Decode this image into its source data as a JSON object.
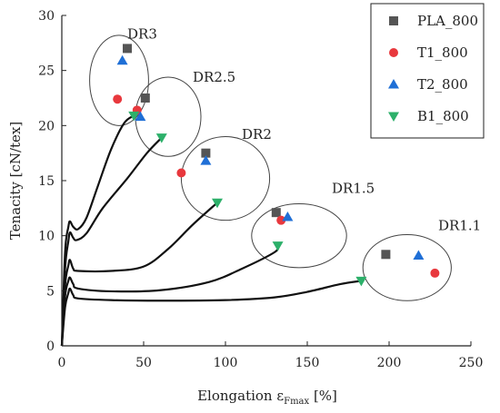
{
  "chart_data": {
    "type": "scatter",
    "title": "",
    "xlabel_main": "Elongation ε",
    "xlabel_sub": "Fmax",
    "xlabel_unit": " [%]",
    "ylabel": "Tenacity [cN/tex]",
    "xlim": [
      0,
      250
    ],
    "ylim": [
      0,
      30
    ],
    "xticks": [
      0,
      50,
      100,
      150,
      200,
      250
    ],
    "yticks": [
      0,
      5,
      10,
      15,
      20,
      25,
      30
    ],
    "grid": false,
    "legend_position": "top-right",
    "series": [
      {
        "name": "PLA_800",
        "marker": "square",
        "color": "#555555",
        "points": [
          [
            40,
            27.0
          ],
          [
            51,
            22.5
          ],
          [
            88,
            17.5
          ],
          [
            131,
            12.1
          ],
          [
            198,
            8.3
          ]
        ]
      },
      {
        "name": "T1_800",
        "marker": "circle",
        "color": "#e8383d",
        "points": [
          [
            34,
            22.4
          ],
          [
            46,
            21.4
          ],
          [
            73,
            15.7
          ],
          [
            134,
            11.4
          ],
          [
            228,
            6.6
          ]
        ]
      },
      {
        "name": "T2_800",
        "marker": "triangle-up",
        "color": "#1f6fd6",
        "points": [
          [
            37,
            25.9
          ],
          [
            48,
            20.8
          ],
          [
            88,
            16.8
          ],
          [
            138,
            11.7
          ],
          [
            218,
            8.2
          ]
        ]
      },
      {
        "name": "B1_800",
        "marker": "triangle-down",
        "color": "#2db06a",
        "points": [
          [
            44,
            20.9
          ],
          [
            61,
            18.9
          ],
          [
            95,
            13.0
          ],
          [
            132,
            9.1
          ],
          [
            183,
            5.9
          ]
        ]
      }
    ],
    "curves": [
      {
        "points": [
          [
            0,
            0
          ],
          [
            2,
            3.5
          ],
          [
            4,
            4.8
          ],
          [
            5,
            5.2
          ],
          [
            7,
            4.6
          ],
          [
            10,
            4.3
          ],
          [
            30,
            4.15
          ],
          [
            60,
            4.1
          ],
          [
            100,
            4.15
          ],
          [
            130,
            4.4
          ],
          [
            150,
            4.9
          ],
          [
            170,
            5.6
          ],
          [
            183,
            5.9
          ]
        ]
      },
      {
        "points": [
          [
            0,
            0
          ],
          [
            2,
            4.5
          ],
          [
            4,
            5.9
          ],
          [
            5,
            6.2
          ],
          [
            7,
            5.6
          ],
          [
            10,
            5.2
          ],
          [
            30,
            4.95
          ],
          [
            60,
            5.05
          ],
          [
            90,
            5.8
          ],
          [
            110,
            7.0
          ],
          [
            130,
            8.5
          ],
          [
            132,
            9.1
          ]
        ]
      },
      {
        "points": [
          [
            0,
            0
          ],
          [
            2,
            5.5
          ],
          [
            4,
            7.3
          ],
          [
            5,
            7.8
          ],
          [
            7,
            7.0
          ],
          [
            10,
            6.8
          ],
          [
            30,
            6.8
          ],
          [
            50,
            7.2
          ],
          [
            65,
            8.8
          ],
          [
            80,
            11.0
          ],
          [
            95,
            13.0
          ]
        ]
      },
      {
        "points": [
          [
            0,
            0
          ],
          [
            2,
            7.0
          ],
          [
            4,
            9.5
          ],
          [
            5,
            10.3
          ],
          [
            7,
            9.8
          ],
          [
            9,
            9.6
          ],
          [
            15,
            10.2
          ],
          [
            25,
            12.5
          ],
          [
            40,
            15.2
          ],
          [
            52,
            17.5
          ],
          [
            61,
            18.9
          ]
        ]
      },
      {
        "points": [
          [
            0,
            0
          ],
          [
            2,
            8.5
          ],
          [
            4,
            10.8
          ],
          [
            5,
            11.3
          ],
          [
            7,
            10.8
          ],
          [
            10,
            10.6
          ],
          [
            15,
            11.6
          ],
          [
            22,
            14.5
          ],
          [
            30,
            17.8
          ],
          [
            38,
            20.2
          ],
          [
            44,
            20.9
          ]
        ]
      }
    ],
    "annotations": [
      {
        "text": "DR3",
        "x": 40,
        "y": 27.9
      },
      {
        "text": "DR2.5",
        "x": 80,
        "y": 24.0
      },
      {
        "text": "DR2",
        "x": 110,
        "y": 18.8
      },
      {
        "text": "DR1.5",
        "x": 165,
        "y": 13.9
      },
      {
        "text": "DR1.1",
        "x": 230,
        "y": 10.5
      }
    ],
    "ellipses": [
      {
        "cx": 35,
        "cy": 24.1,
        "rx": 18,
        "ry": 4.1
      },
      {
        "cx": 65,
        "cy": 20.8,
        "rx": 20,
        "ry": 3.6
      },
      {
        "cx": 100,
        "cy": 15.2,
        "rx": 27,
        "ry": 3.8
      },
      {
        "cx": 145,
        "cy": 10.0,
        "rx": 29,
        "ry": 2.9
      },
      {
        "cx": 211,
        "cy": 7.1,
        "rx": 27,
        "ry": 3.0
      }
    ]
  }
}
